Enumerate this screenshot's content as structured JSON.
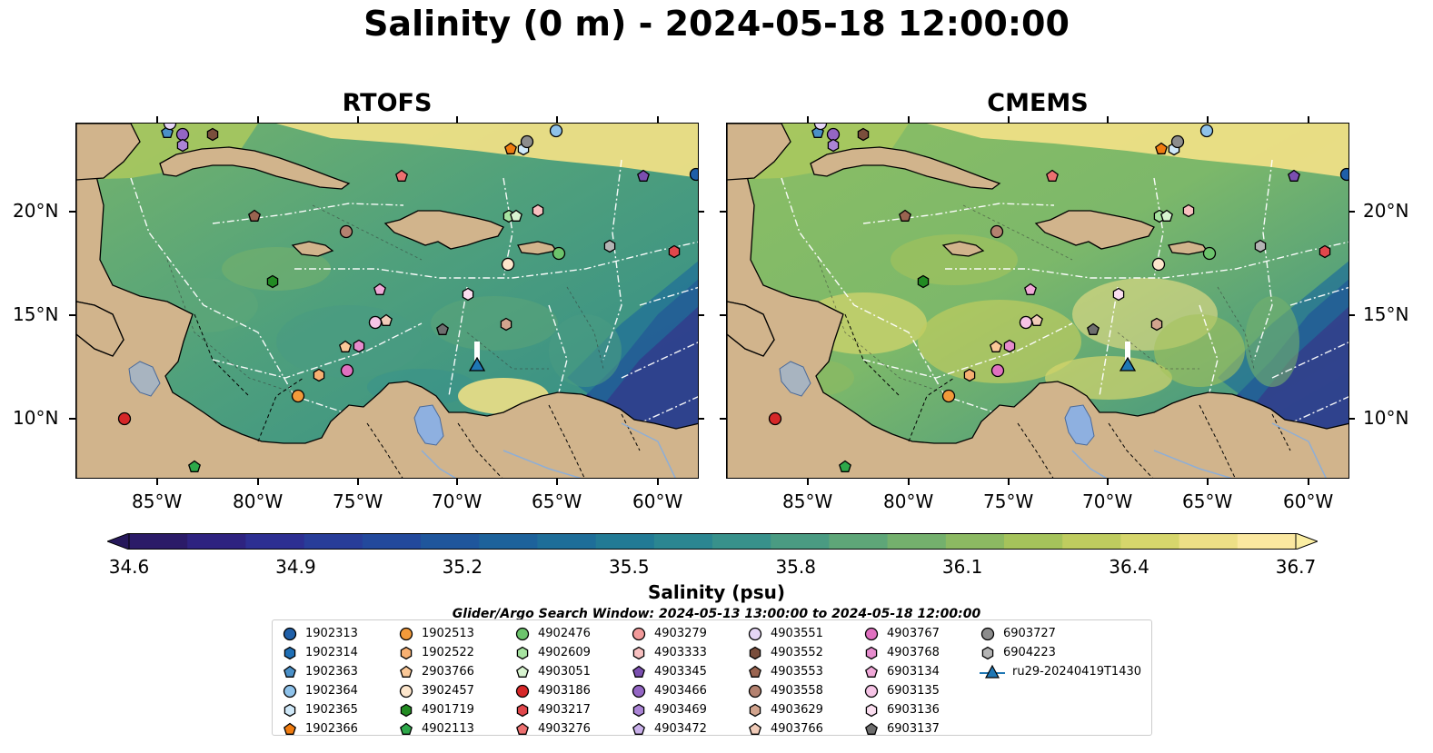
{
  "title": "Salinity (0 m) - 2024-05-18 12:00:00",
  "panels": [
    {
      "title": "RTOFS",
      "key": "rtofs"
    },
    {
      "title": "CMEMS",
      "key": "cmems"
    }
  ],
  "lon_ticks": [
    "85°W",
    "80°W",
    "75°W",
    "70°W",
    "65°W",
    "60°W"
  ],
  "lat_ticks": [
    "20°N",
    "15°N",
    "10°N"
  ],
  "colorbar": {
    "label": "Salinity (psu)",
    "ticks": [
      "34.6",
      "34.9",
      "35.2",
      "35.5",
      "35.8",
      "36.1",
      "36.4",
      "36.7"
    ],
    "colors": [
      "#2b1b68",
      "#2e2380",
      "#2d2f92",
      "#283d99",
      "#23499c",
      "#1f569c",
      "#1d629b",
      "#1e6e99",
      "#227a95",
      "#2b8691",
      "#38918b",
      "#4a9b82",
      "#5ea678",
      "#74b06d",
      "#8cb962",
      "#a5c35b",
      "#bfcc5f",
      "#d6d66c",
      "#eddf86",
      "#fbe8a0"
    ],
    "extend_low": "#26185a",
    "extend_high": "#fbeea2"
  },
  "legend": {
    "title": "Glider/Argo Search Window: 2024-05-13 13:00:00 to 2024-05-18 12:00:00",
    "entries": [
      {
        "label": "1902313",
        "marker": "circle",
        "color": "#1f5fa8"
      },
      {
        "label": "1902314",
        "marker": "hexagon",
        "color": "#1f6fb5"
      },
      {
        "label": "1902363",
        "marker": "pentagon",
        "color": "#4a90c8"
      },
      {
        "label": "1902364",
        "marker": "circle",
        "color": "#8ec2ea"
      },
      {
        "label": "1902365",
        "marker": "hexagon",
        "color": "#cfe8f8"
      },
      {
        "label": "1902366",
        "marker": "pentagon",
        "color": "#f07c10"
      },
      {
        "label": "1902513",
        "marker": "circle",
        "color": "#f39a3a"
      },
      {
        "label": "1902522",
        "marker": "hexagon",
        "color": "#f7b072"
      },
      {
        "label": "2903766",
        "marker": "pentagon",
        "color": "#fac898"
      },
      {
        "label": "3902457",
        "marker": "circle",
        "color": "#fde6cc"
      },
      {
        "label": "4901719",
        "marker": "hexagon",
        "color": "#228b22"
      },
      {
        "label": "4902113",
        "marker": "pentagon",
        "color": "#2ea84a"
      },
      {
        "label": "4902476",
        "marker": "circle",
        "color": "#6cc46c"
      },
      {
        "label": "4902609",
        "marker": "hexagon",
        "color": "#a6e3a0"
      },
      {
        "label": "4903051",
        "marker": "pentagon",
        "color": "#d8f4d0"
      },
      {
        "label": "4903186",
        "marker": "circle",
        "color": "#d62728"
      },
      {
        "label": "4903217",
        "marker": "hexagon",
        "color": "#e0474c"
      },
      {
        "label": "4903276",
        "marker": "pentagon",
        "color": "#ec7070"
      },
      {
        "label": "4903279",
        "marker": "circle",
        "color": "#f29a9a"
      },
      {
        "label": "4903333",
        "marker": "hexagon",
        "color": "#f8c0c0"
      },
      {
        "label": "4903345",
        "marker": "pentagon",
        "color": "#7b4fb0"
      },
      {
        "label": "4903466",
        "marker": "circle",
        "color": "#9466c4"
      },
      {
        "label": "4903469",
        "marker": "hexagon",
        "color": "#ab84d6"
      },
      {
        "label": "4903472",
        "marker": "pentagon",
        "color": "#c9b0ea"
      },
      {
        "label": "4903551",
        "marker": "circle",
        "color": "#e6d6f6"
      },
      {
        "label": "4903552",
        "marker": "hexagon",
        "color": "#7a4e3c"
      },
      {
        "label": "4903553",
        "marker": "pentagon",
        "color": "#9a6450"
      },
      {
        "label": "4903558",
        "marker": "circle",
        "color": "#b48270"
      },
      {
        "label": "4903629",
        "marker": "hexagon",
        "color": "#d2a48e"
      },
      {
        "label": "4903766",
        "marker": "pentagon",
        "color": "#f0cbb8"
      },
      {
        "label": "4903767",
        "marker": "circle",
        "color": "#e070c0"
      },
      {
        "label": "4903768",
        "marker": "hexagon",
        "color": "#e68ccd"
      },
      {
        "label": "6903134",
        "marker": "pentagon",
        "color": "#f0a8d8"
      },
      {
        "label": "6903135",
        "marker": "circle",
        "color": "#f6c4e6"
      },
      {
        "label": "6903136",
        "marker": "hexagon",
        "color": "#fbdef0"
      },
      {
        "label": "6903137",
        "marker": "pentagon",
        "color": "#6e6e6e"
      },
      {
        "label": "6903727",
        "marker": "circle",
        "color": "#8c8c8c"
      },
      {
        "label": "6904223",
        "marker": "hexagon",
        "color": "#b4b4b4"
      },
      {
        "label": "ru29-20240419T1430",
        "marker": "triangle-line",
        "color": "#1f77b4"
      }
    ]
  }
}
